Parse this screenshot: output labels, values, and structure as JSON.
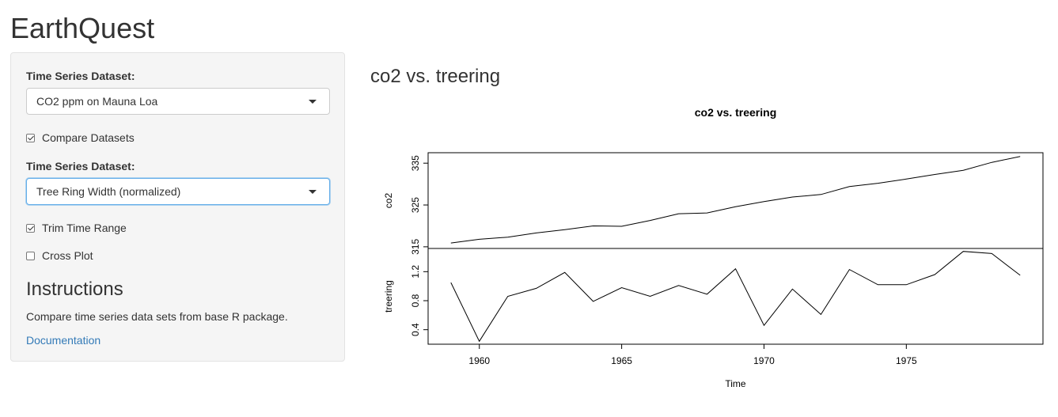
{
  "app": {
    "title": "EarthQuest"
  },
  "sidebar": {
    "dataset1_label": "Time Series Dataset:",
    "dataset1_value": "CO2 ppm on Mauna Loa",
    "compare_label": "Compare Datasets",
    "compare_checked": true,
    "dataset2_label": "Time Series Dataset:",
    "dataset2_value": "Tree Ring Width (normalized)",
    "trim_label": "Trim Time Range",
    "trim_checked": true,
    "cross_label": "Cross Plot",
    "cross_checked": false,
    "instructions_title": "Instructions",
    "instructions_text": "Compare time series data sets from base R package.",
    "documentation_link": "Documentation"
  },
  "main": {
    "title": "co2 vs. treering"
  },
  "chart_data": {
    "type": "line",
    "title": "co2  vs. treering",
    "xlabel": "Time",
    "x": [
      1959,
      1960,
      1961,
      1962,
      1963,
      1964,
      1965,
      1966,
      1967,
      1968,
      1969,
      1970,
      1971,
      1972,
      1973,
      1974,
      1975,
      1976,
      1977,
      1978,
      1979
    ],
    "x_ticks": [
      "1960",
      "1965",
      "1970",
      "1975"
    ],
    "xlim": [
      1958.2,
      1979.8
    ],
    "series": [
      {
        "name": "co2",
        "values": [
          315.9,
          316.8,
          317.3,
          318.3,
          319.1,
          320.0,
          319.9,
          321.3,
          322.9,
          323.1,
          324.6,
          325.8,
          326.9,
          327.5,
          329.4,
          330.2,
          331.2,
          332.3,
          333.3,
          335.2,
          336.6
        ],
        "ylim": [
          314.6,
          337.5
        ],
        "y_ticks": [
          "315",
          "325",
          "335"
        ]
      },
      {
        "name": "treering",
        "values": [
          1.05,
          0.24,
          0.86,
          0.97,
          1.19,
          0.79,
          0.98,
          0.86,
          1.01,
          0.89,
          1.24,
          0.46,
          0.96,
          0.61,
          1.23,
          1.02,
          1.02,
          1.16,
          1.48,
          1.45,
          1.15
        ],
        "ylim": [
          0.2,
          1.52
        ],
        "y_ticks": [
          "0.4",
          "0.8",
          "1.2"
        ]
      }
    ],
    "line_color": "#000000",
    "grid": false
  }
}
